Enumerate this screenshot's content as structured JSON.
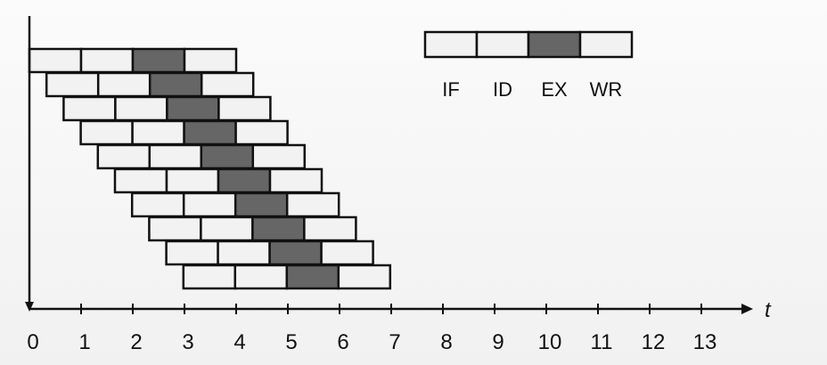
{
  "diagram": {
    "stages": [
      "IF",
      "ID",
      "EX",
      "WR"
    ],
    "highlighted_stage": "EX",
    "instruction_count": 10,
    "x_axis_label": "t",
    "x_ticks": [
      "0",
      "1",
      "2",
      "3",
      "4",
      "5",
      "6",
      "7",
      "8",
      "9",
      "10",
      "11",
      "12",
      "13"
    ],
    "colors": {
      "background": "#f4f4f4",
      "stage_fill": "#f2f2f2",
      "highlight_fill": "#666666",
      "stroke": "#111111"
    }
  }
}
